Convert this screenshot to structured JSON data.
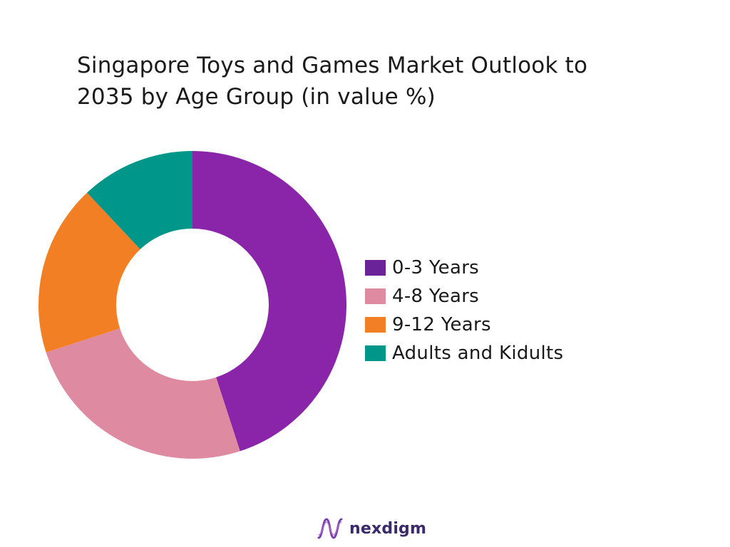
{
  "chart_data": {
    "type": "pie",
    "subtype": "donut",
    "title_lines": [
      "Singapore Toys and Games Market Outlook to",
      "2035 by Age Group (in value %)"
    ],
    "categories": [
      "0-3 Years",
      "4-8 Years",
      "9-12 Years",
      "Adults and Kidults"
    ],
    "values": [
      45,
      25,
      18,
      12
    ],
    "colors": [
      "#8a24a8",
      "#de8aa0",
      "#f27f23",
      "#00968a"
    ],
    "legend_swatch_colors": [
      "#6b2399",
      "#de8aa0",
      "#f27f23",
      "#00968a"
    ],
    "legend_position": "right"
  },
  "brand": {
    "name": "nexdigm",
    "logo_icon": "nexdigm-wave-logo"
  }
}
